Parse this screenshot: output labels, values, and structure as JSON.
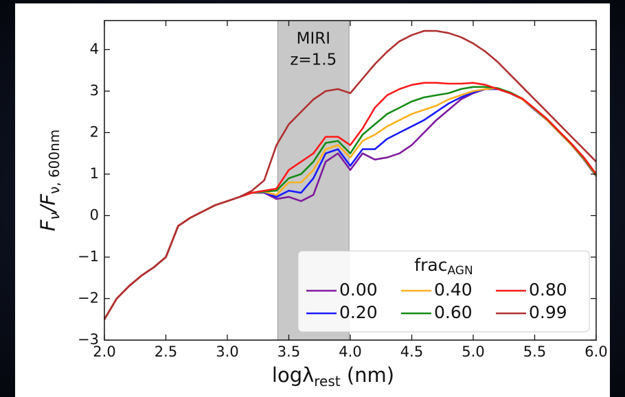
{
  "chart_data": {
    "type": "line",
    "x_label": {
      "main": "logλ",
      "sub": "rest",
      "tail": " (nm)"
    },
    "y_label": {
      "f1": "F",
      "s1": "ν",
      "f2": "/F",
      "s2": "ν, 600nm"
    },
    "legend_title": {
      "main": "frac",
      "sub": "AGN"
    },
    "legend": "lower right",
    "shade": {
      "xlim": [
        3.41,
        3.99
      ],
      "color": "#c8c8c8",
      "label": [
        "MIRI",
        "z=1.5"
      ]
    },
    "x": [
      2.0,
      2.1,
      2.2,
      2.3,
      2.4,
      2.5,
      2.6,
      2.7,
      2.8,
      2.9,
      3.0,
      3.1,
      3.2,
      3.3,
      3.4,
      3.5,
      3.6,
      3.7,
      3.8,
      3.9,
      4.0,
      4.1,
      4.2,
      4.3,
      4.4,
      4.5,
      4.6,
      4.7,
      4.8,
      4.9,
      5.0,
      5.1,
      5.2,
      5.3,
      5.4,
      5.5,
      5.6,
      5.7,
      5.8,
      5.9,
      6.0
    ],
    "series": [
      {
        "name": "0.00",
        "color": "#7d1a9e",
        "values": [
          -2.5,
          -2.0,
          -1.7,
          -1.45,
          -1.25,
          -1.0,
          -0.25,
          -0.05,
          0.1,
          0.25,
          0.35,
          0.45,
          0.55,
          0.55,
          0.4,
          0.45,
          0.35,
          0.5,
          1.3,
          1.5,
          1.1,
          1.5,
          1.35,
          1.4,
          1.5,
          1.7,
          2.0,
          2.3,
          2.55,
          2.8,
          2.95,
          3.05,
          3.05,
          2.95,
          2.8,
          2.55,
          2.3,
          2.0,
          1.7,
          1.35,
          0.95
        ]
      },
      {
        "name": "0.20",
        "color": "#1a1aff",
        "values": [
          -2.5,
          -2.0,
          -1.7,
          -1.45,
          -1.25,
          -1.0,
          -0.25,
          -0.05,
          0.1,
          0.25,
          0.35,
          0.45,
          0.55,
          0.56,
          0.45,
          0.6,
          0.55,
          0.9,
          1.5,
          1.6,
          1.2,
          1.6,
          1.6,
          1.85,
          2.0,
          2.15,
          2.3,
          2.5,
          2.7,
          2.85,
          2.97,
          3.05,
          3.05,
          2.95,
          2.8,
          2.55,
          2.3,
          2.0,
          1.7,
          1.35,
          0.95
        ]
      },
      {
        "name": "0.40",
        "color": "#ffb020",
        "values": [
          -2.5,
          -2.0,
          -1.7,
          -1.45,
          -1.25,
          -1.0,
          -0.25,
          -0.05,
          0.1,
          0.25,
          0.35,
          0.45,
          0.55,
          0.57,
          0.5,
          0.8,
          0.8,
          1.1,
          1.6,
          1.7,
          1.4,
          1.8,
          1.95,
          2.15,
          2.3,
          2.45,
          2.55,
          2.65,
          2.8,
          2.9,
          3.0,
          3.05,
          3.07,
          2.96,
          2.8,
          2.56,
          2.3,
          2.0,
          1.7,
          1.36,
          0.96
        ]
      },
      {
        "name": "0.60",
        "color": "#158a15",
        "values": [
          -2.5,
          -2.0,
          -1.7,
          -1.45,
          -1.25,
          -1.0,
          -0.25,
          -0.05,
          0.1,
          0.25,
          0.35,
          0.45,
          0.55,
          0.58,
          0.6,
          0.9,
          1.0,
          1.3,
          1.75,
          1.8,
          1.5,
          1.95,
          2.2,
          2.45,
          2.6,
          2.75,
          2.85,
          2.9,
          2.95,
          3.05,
          3.1,
          3.1,
          3.07,
          2.97,
          2.82,
          2.57,
          2.32,
          2.02,
          1.72,
          1.38,
          0.98
        ]
      },
      {
        "name": "0.80",
        "color": "#ff1a1a",
        "values": [
          -2.5,
          -2.0,
          -1.7,
          -1.45,
          -1.25,
          -1.0,
          -0.25,
          -0.05,
          0.1,
          0.25,
          0.35,
          0.45,
          0.55,
          0.6,
          0.65,
          1.1,
          1.3,
          1.5,
          1.9,
          1.9,
          1.7,
          2.1,
          2.6,
          2.9,
          3.05,
          3.15,
          3.2,
          3.2,
          3.18,
          3.18,
          3.2,
          3.15,
          3.05,
          2.95,
          2.82,
          2.58,
          2.33,
          2.03,
          1.73,
          1.4,
          1.0
        ]
      },
      {
        "name": "0.99",
        "color": "#b03030",
        "values": [
          -2.5,
          -2.0,
          -1.7,
          -1.45,
          -1.25,
          -1.0,
          -0.25,
          -0.05,
          0.1,
          0.25,
          0.35,
          0.45,
          0.6,
          0.85,
          1.7,
          2.2,
          2.5,
          2.8,
          3.0,
          3.05,
          2.95,
          3.3,
          3.65,
          3.95,
          4.2,
          4.35,
          4.45,
          4.45,
          4.4,
          4.3,
          4.15,
          3.95,
          3.7,
          3.4,
          3.1,
          2.8,
          2.5,
          2.2,
          1.9,
          1.6,
          1.3
        ]
      }
    ],
    "xlim": [
      2.0,
      6.0
    ],
    "xticks": [
      {
        "value": 2.0,
        "label": "2.0"
      },
      {
        "value": 2.5,
        "label": "2.5"
      },
      {
        "value": 3.0,
        "label": "3.0"
      },
      {
        "value": 3.5,
        "label": "3.5"
      },
      {
        "value": 4.0,
        "label": "4.0"
      },
      {
        "value": 4.5,
        "label": "4.5"
      },
      {
        "value": 5.0,
        "label": "5.0"
      },
      {
        "value": 5.5,
        "label": "5.5"
      },
      {
        "value": 6.0,
        "label": "6.0"
      }
    ],
    "ylim": [
      -3,
      4.7
    ],
    "yticks": [
      {
        "value": -3,
        "label": "−3"
      },
      {
        "value": -2,
        "label": "−2"
      },
      {
        "value": -1,
        "label": "−1"
      },
      0,
      1,
      2,
      3,
      4
    ]
  }
}
